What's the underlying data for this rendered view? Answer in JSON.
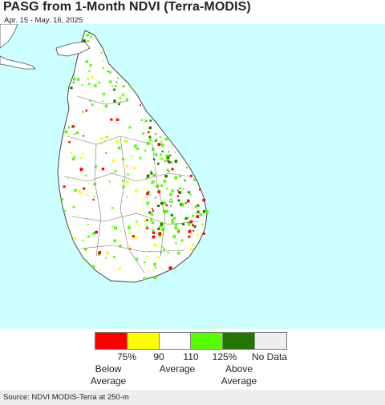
{
  "header": {
    "title": "PASG from 1-Month NDVI (Terra-MODIS)",
    "subtitle": "Apr. 15 - May. 16, 2025"
  },
  "map": {
    "region": "Sri Lanka",
    "ocean_color": "#ccffff",
    "land_color": "#ffffff",
    "boundary_color": "#555555"
  },
  "legend": {
    "colors": [
      "#ff0000",
      "#ffff00",
      "#ffffff",
      "#55ff00",
      "#227700",
      "#eeeeee"
    ],
    "ticks": [
      "75%",
      "90",
      "110",
      "125%",
      "No Data"
    ],
    "below_label": "Below\nAverage",
    "average_label": "Average",
    "above_label": "Above\nAverage"
  },
  "footer": {
    "source": "Source: NDVI MODIS-Terra at 250-m"
  }
}
